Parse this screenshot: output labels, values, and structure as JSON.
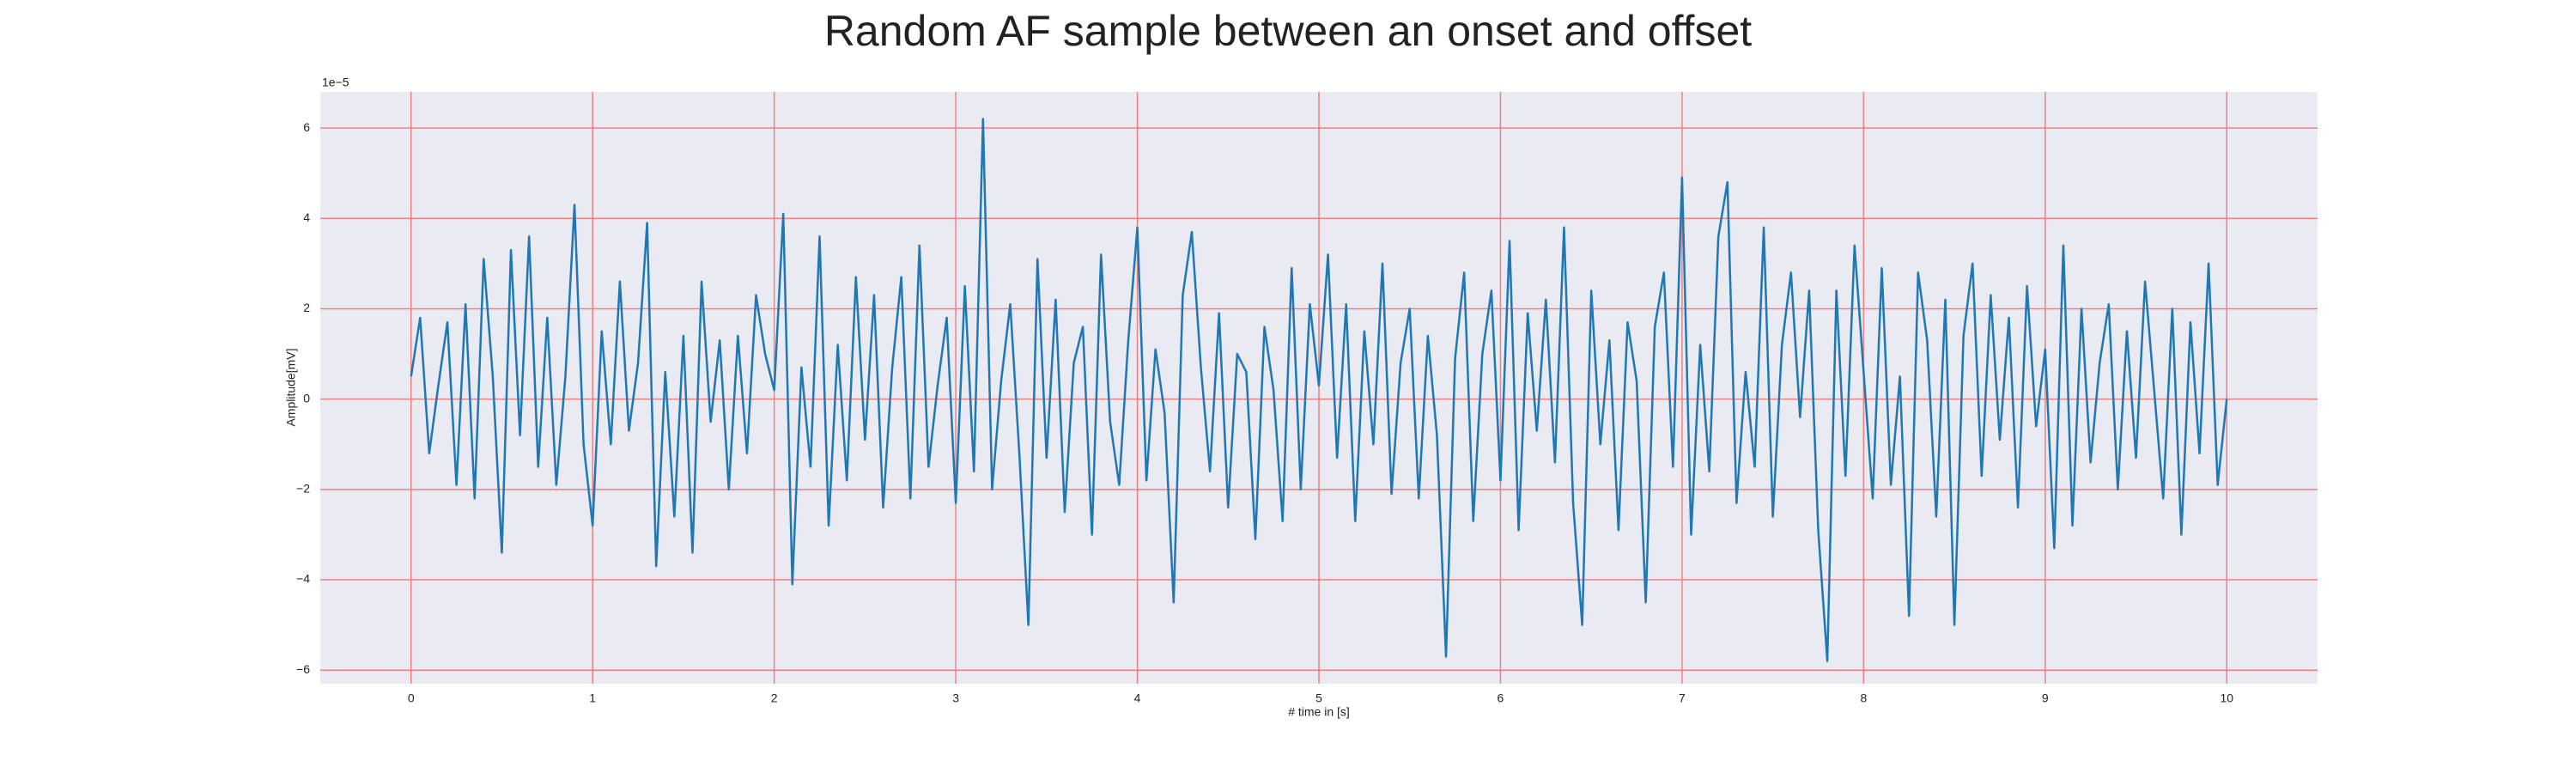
{
  "chart_data": {
    "type": "line",
    "title": "Random AF sample between an onset and offset",
    "xlabel": "# time in [s]",
    "ylabel": "Amplitude[mV]",
    "y_offset_label": "1e−5",
    "color": "#1f77b4",
    "grid": true,
    "xlim": [
      -0.5,
      10.5
    ],
    "ylim": [
      -6.3,
      6.8
    ],
    "xticks": [
      0,
      1,
      2,
      3,
      4,
      5,
      6,
      7,
      8,
      9,
      10
    ],
    "yticks": [
      {
        "value": -6,
        "label": "−6"
      },
      {
        "value": -4,
        "label": "−4"
      },
      {
        "value": -2,
        "label": "−2"
      },
      0,
      2,
      4,
      6
    ],
    "x": [
      0,
      0.05,
      0.1,
      0.15,
      0.2,
      0.25,
      0.3,
      0.35,
      0.4,
      0.45,
      0.5,
      0.55,
      0.6,
      0.65,
      0.7,
      0.75,
      0.8,
      0.85,
      0.9,
      0.95,
      1,
      1.05,
      1.1,
      1.15,
      1.2,
      1.25,
      1.3,
      1.35,
      1.4,
      1.45,
      1.5,
      1.55,
      1.6,
      1.65,
      1.7,
      1.75,
      1.8,
      1.85,
      1.9,
      1.95,
      2,
      2.05,
      2.1,
      2.15,
      2.2,
      2.25,
      2.3,
      2.35,
      2.4,
      2.45,
      2.5,
      2.55,
      2.6,
      2.65,
      2.7,
      2.75,
      2.8,
      2.85,
      2.9,
      2.95,
      3,
      3.05,
      3.1,
      3.15,
      3.2,
      3.25,
      3.3,
      3.35,
      3.4,
      3.45,
      3.5,
      3.55,
      3.6,
      3.65,
      3.7,
      3.75,
      3.8,
      3.85,
      3.9,
      3.95,
      4,
      4.05,
      4.1,
      4.15,
      4.2,
      4.25,
      4.3,
      4.35,
      4.4,
      4.45,
      4.5,
      4.55,
      4.6,
      4.65,
      4.7,
      4.75,
      4.8,
      4.85,
      4.9,
      4.95,
      5,
      5.05,
      5.1,
      5.15,
      5.2,
      5.25,
      5.3,
      5.35,
      5.4,
      5.45,
      5.5,
      5.55,
      5.6,
      5.65,
      5.7,
      5.75,
      5.8,
      5.85,
      5.9,
      5.95,
      6,
      6.05,
      6.1,
      6.15,
      6.2,
      6.25,
      6.3,
      6.35,
      6.4,
      6.45,
      6.5,
      6.55,
      6.6,
      6.65,
      6.7,
      6.75,
      6.8,
      6.85,
      6.9,
      6.95,
      7,
      7.05,
      7.1,
      7.15,
      7.2,
      7.25,
      7.3,
      7.35,
      7.4,
      7.45,
      7.5,
      7.55,
      7.6,
      7.65,
      7.7,
      7.75,
      7.8,
      7.85,
      7.9,
      7.95,
      8,
      8.05,
      8.1,
      8.15,
      8.2,
      8.25,
      8.3,
      8.35,
      8.4,
      8.45,
      8.5,
      8.55,
      8.6,
      8.65,
      8.7,
      8.75,
      8.8,
      8.85,
      8.9,
      8.95,
      9,
      9.05,
      9.1,
      9.15,
      9.2,
      9.25,
      9.3,
      9.35,
      9.4,
      9.45,
      9.5,
      9.55,
      9.6,
      9.65,
      9.7,
      9.75,
      9.8,
      9.85,
      9.9,
      9.95,
      10
    ],
    "values": [
      0.5,
      1.8,
      -1.2,
      0.3,
      1.7,
      -1.9,
      2.1,
      -2.2,
      3.1,
      0.5,
      -3.4,
      3.3,
      -0.8,
      3.6,
      -1.5,
      1.8,
      -1.9,
      0.5,
      4.3,
      -1.0,
      -2.8,
      1.5,
      -1.0,
      2.6,
      -0.7,
      0.8,
      3.9,
      -3.7,
      0.6,
      -2.6,
      1.4,
      -3.4,
      2.6,
      -0.5,
      1.3,
      -2.0,
      1.4,
      -1.2,
      2.3,
      1.0,
      0.2,
      4.1,
      -4.1,
      0.7,
      -1.5,
      3.6,
      -2.8,
      1.2,
      -1.8,
      2.7,
      -0.9,
      2.3,
      -2.4,
      0.7,
      2.7,
      -2.2,
      3.4,
      -1.5,
      0.3,
      1.8,
      -2.3,
      2.5,
      -1.6,
      6.2,
      -2.0,
      0.4,
      2.1,
      -1.2,
      -5.0,
      3.1,
      -1.3,
      2.2,
      -2.5,
      0.8,
      1.6,
      -3.0,
      3.2,
      -0.5,
      -1.9,
      1.3,
      3.8,
      -1.8,
      1.1,
      -0.3,
      -4.5,
      2.3,
      3.7,
      0.7,
      -1.6,
      1.9,
      -2.4,
      1.0,
      0.6,
      -3.1,
      1.6,
      0.2,
      -2.7,
      2.9,
      -2.0,
      2.1,
      0.3,
      3.2,
      -1.3,
      2.1,
      -2.7,
      1.5,
      -1.0,
      3.0,
      -2.1,
      0.8,
      2.0,
      -2.2,
      1.4,
      -0.8,
      -5.7,
      0.9,
      2.8,
      -2.7,
      1.0,
      2.4,
      -1.8,
      3.5,
      -2.9,
      1.9,
      -0.7,
      2.2,
      -1.4,
      3.8,
      -2.3,
      -5.0,
      2.4,
      -1.0,
      1.3,
      -2.9,
      1.7,
      0.4,
      -4.5,
      1.6,
      2.8,
      -1.5,
      4.9,
      -3.0,
      1.2,
      -1.6,
      3.6,
      4.8,
      -2.3,
      0.6,
      -1.5,
      3.8,
      -2.6,
      1.2,
      2.8,
      -0.4,
      2.4,
      -2.9,
      -5.8,
      2.4,
      -1.7,
      3.4,
      0.6,
      -2.2,
      2.9,
      -1.9,
      0.5,
      -4.8,
      2.8,
      1.3,
      -2.6,
      2.2,
      -5.0,
      1.4,
      3.0,
      -1.7,
      2.3,
      -0.9,
      1.8,
      -2.4,
      2.5,
      -0.6,
      1.1,
      -3.3,
      3.4,
      -2.8,
      2.0,
      -1.4,
      0.8,
      2.1,
      -2.0,
      1.5,
      -1.3,
      2.6,
      0.2,
      -2.2,
      2.0,
      -3.0,
      1.7,
      -1.2,
      3.0,
      -1.9,
      0.0
    ]
  }
}
